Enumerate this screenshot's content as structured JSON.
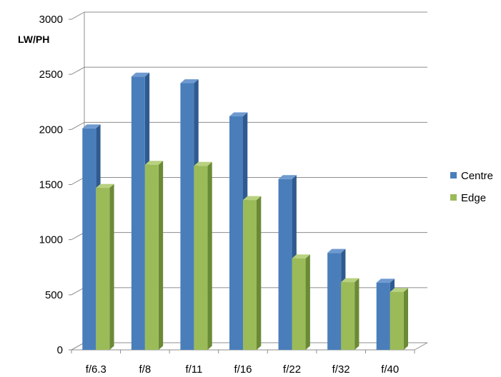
{
  "chart_data": {
    "type": "bar",
    "ylabel": "LW/PH",
    "xlabel": "",
    "ylim": [
      0,
      3000
    ],
    "yticks": [
      0,
      500,
      1000,
      1500,
      2000,
      2500,
      3000
    ],
    "categories": [
      "f/6.3",
      "f/8",
      "f/11",
      "f/16",
      "f/22",
      "f/32",
      "f/40"
    ],
    "series": [
      {
        "name": "Centre",
        "values": [
          2010,
          2480,
          2420,
          2120,
          1550,
          880,
          610
        ],
        "color": "#4a7ebb",
        "side_color": "#2f5a8f",
        "top_color": "#6f9ad0"
      },
      {
        "name": "Edge",
        "values": [
          1470,
          1680,
          1670,
          1360,
          830,
          615,
          525
        ],
        "color": "#9bbb59",
        "side_color": "#6b8a35",
        "top_color": "#b8d17f"
      }
    ],
    "grid": true,
    "legend": "right",
    "style": "3d-clustered-column"
  }
}
